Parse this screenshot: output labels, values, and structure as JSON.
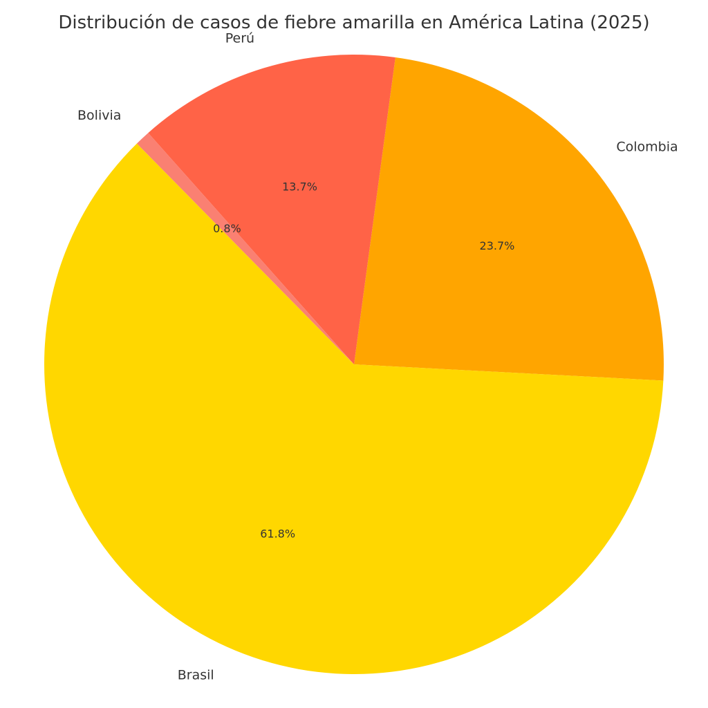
{
  "chart_data": {
    "type": "pie",
    "title": "Distribución de casos de fiebre amarilla en América Latina (2025)",
    "categories": [
      "Colombia",
      "Perú",
      "Bolivia",
      "Brasil"
    ],
    "values": [
      23.7,
      13.7,
      0.8,
      61.8
    ],
    "value_labels": [
      "23.7%",
      "13.7%",
      "0.8%",
      "61.8%"
    ],
    "colors": [
      "#FFA500",
      "#FF6347",
      "#FA8072",
      "#FFD700"
    ],
    "start_angle_deg": -3,
    "direction": "counterclockwise",
    "legend": "none"
  }
}
